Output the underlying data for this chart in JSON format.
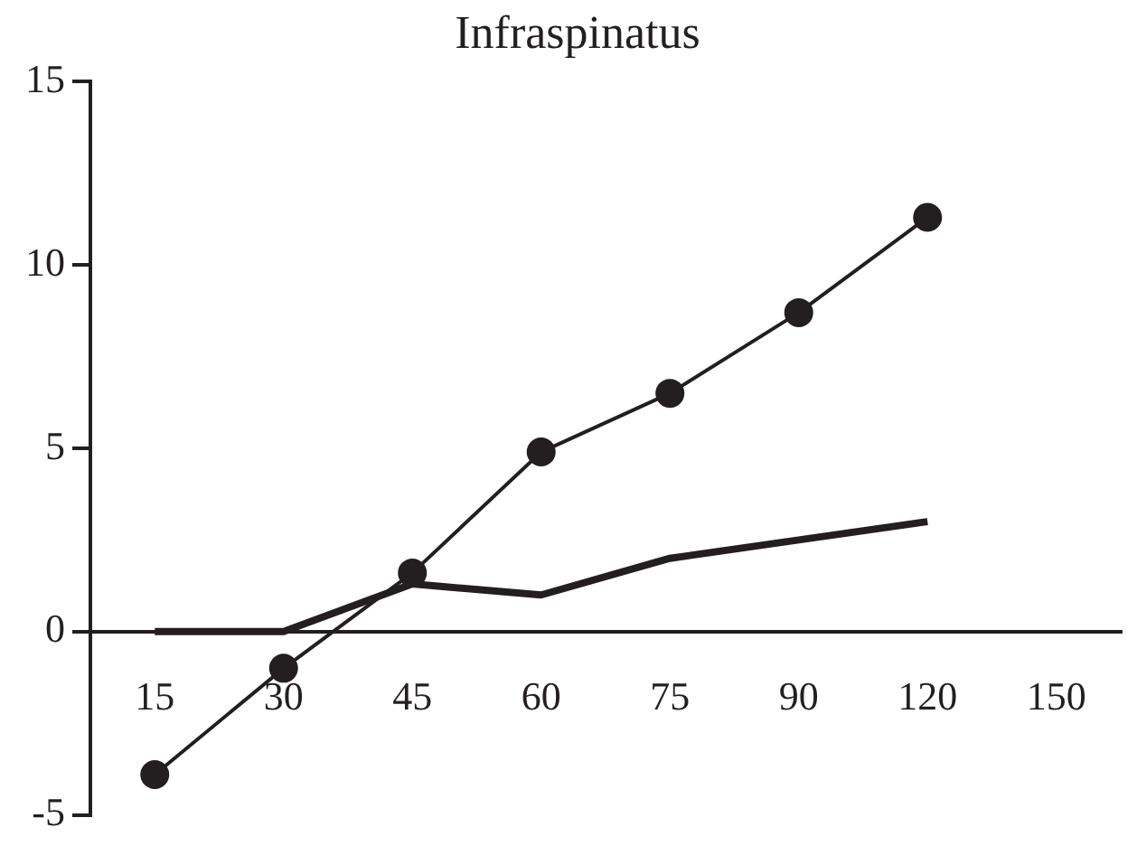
{
  "chart_data": {
    "type": "line",
    "title": "Infraspinatus",
    "categories": [
      "15",
      "30",
      "45",
      "60",
      "75",
      "90",
      "120",
      "150"
    ],
    "series": [
      {
        "color": "#231f20",
        "marker": "circle",
        "values": [
          -3.9,
          -1.0,
          1.6,
          4.9,
          6.5,
          8.7,
          11.3,
          null
        ]
      },
      {
        "color": "#231f20",
        "marker": "none",
        "values": [
          0,
          0,
          1.3,
          1.0,
          2.0,
          2.5,
          3.0,
          null
        ]
      }
    ],
    "ylim": [
      -5,
      15
    ],
    "yticks": [
      -5,
      0,
      5,
      10,
      15
    ],
    "grid": false,
    "legend": false
  }
}
